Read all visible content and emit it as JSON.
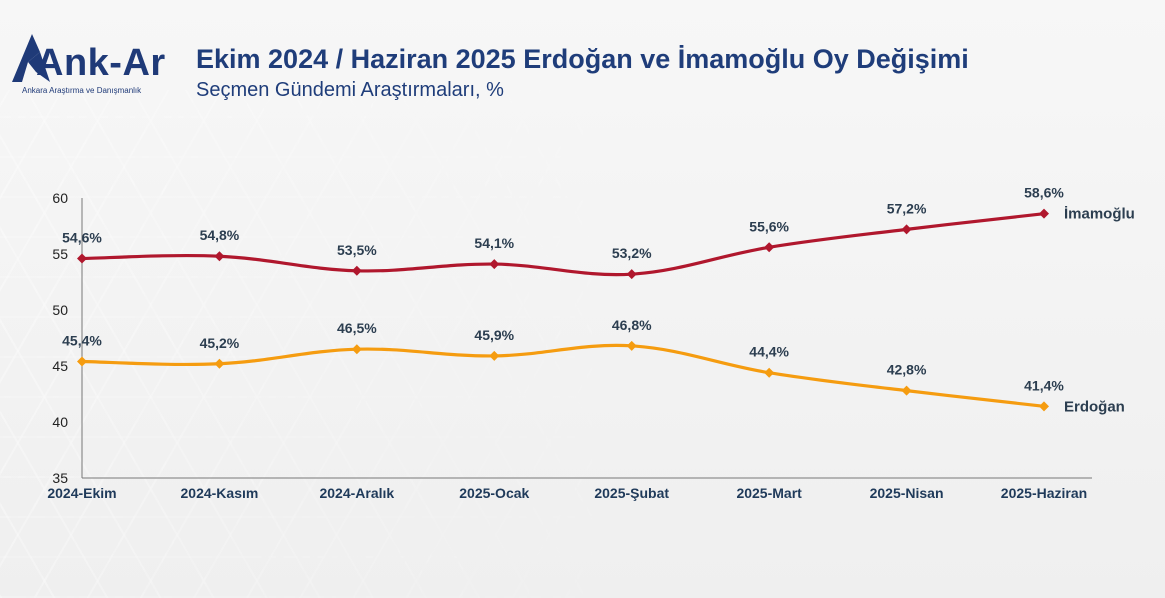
{
  "header": {
    "title": "Ekim 2024 / Haziran 2025 Erdoğan ve İmamoğlu Oy Değişimi",
    "subtitle": "Seçmen Gündemi Araştırmaları, %"
  },
  "logo": {
    "name": "Ank-Ar",
    "tagline": "Ankara Araştırma ve Danışmanlık"
  },
  "colors": {
    "imamoglu": "#b0172d",
    "erdogan": "#f59c10",
    "title": "#1f3d7a"
  },
  "chart_data": {
    "type": "line",
    "title": "Ekim 2024 / Haziran 2025 Erdoğan ve İmamoğlu Oy Değişimi",
    "categories": [
      "2024-Ekim",
      "2024-Kasım",
      "2024-Aralık",
      "2025-Ocak",
      "2025-Şubat",
      "2025-Mart",
      "2025-Nisan",
      "2025-Haziran"
    ],
    "ylim": [
      35,
      60
    ],
    "yticks": [
      35,
      40,
      45,
      50,
      55,
      60
    ],
    "xlabel": "",
    "ylabel": "",
    "grid": false,
    "series": [
      {
        "name": "İmamoğlu",
        "values": [
          54.6,
          54.8,
          53.5,
          54.1,
          53.2,
          55.6,
          57.2,
          58.6
        ],
        "labels": [
          "54,6%",
          "54,8%",
          "53,5%",
          "54,1%",
          "53,2%",
          "55,6%",
          "57,2%",
          "58,6%"
        ]
      },
      {
        "name": "Erdoğan",
        "values": [
          45.4,
          45.2,
          46.5,
          45.9,
          46.8,
          44.4,
          42.8,
          41.4
        ],
        "labels": [
          "45,4%",
          "45,2%",
          "46,5%",
          "45,9%",
          "46,8%",
          "44,4%",
          "42,8%",
          "41,4%"
        ]
      }
    ]
  }
}
